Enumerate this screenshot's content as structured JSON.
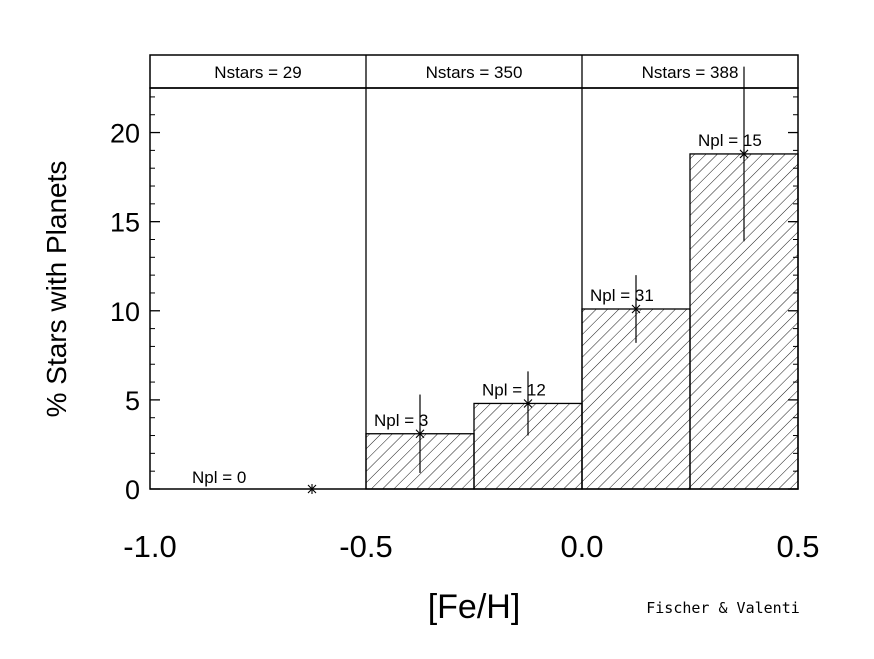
{
  "chart_data": {
    "type": "bar",
    "title": "",
    "xlabel": "[Fe/H]",
    "ylabel": "% Stars with Planets",
    "xlim": [
      -1.0,
      0.5
    ],
    "ylim": [
      0,
      22.5
    ],
    "x_ticks": [
      "-1.0",
      "-0.5",
      "0.0",
      "0.5"
    ],
    "y_ticks": [
      "0",
      "5",
      "10",
      "15",
      "20"
    ],
    "groups": [
      {
        "label": "Nstars = 29",
        "x_range": [
          -1.0,
          -0.5
        ]
      },
      {
        "label": "Nstars = 350",
        "x_range": [
          -0.5,
          0.0
        ]
      },
      {
        "label": "Nstars = 388",
        "x_range": [
          0.0,
          0.5
        ]
      }
    ],
    "bins": [
      {
        "x_range": [
          -1.0,
          -0.5
        ],
        "value": 0,
        "err_low": 0,
        "err_high": 0,
        "x_center": -0.625,
        "label": "Npl = 0"
      },
      {
        "x_range": [
          -0.5,
          -0.25
        ],
        "value": 3.1,
        "err_low": 2.2,
        "err_high": 2.2,
        "x_center": -0.375,
        "label": "Npl = 3"
      },
      {
        "x_range": [
          -0.25,
          0.0
        ],
        "value": 4.8,
        "err_low": 1.8,
        "err_high": 1.8,
        "x_center": -0.125,
        "label": "Npl = 12"
      },
      {
        "x_range": [
          0.0,
          0.25
        ],
        "value": 10.1,
        "err_low": 1.9,
        "err_high": 1.9,
        "x_center": 0.125,
        "label": "Npl = 31"
      },
      {
        "x_range": [
          0.25,
          0.5
        ],
        "value": 18.8,
        "err_low": 4.9,
        "err_high": 4.9,
        "x_center": 0.375,
        "label": "Npl = 15"
      }
    ],
    "hatched": true,
    "grid": false
  },
  "credit": "Fischer & Valenti"
}
